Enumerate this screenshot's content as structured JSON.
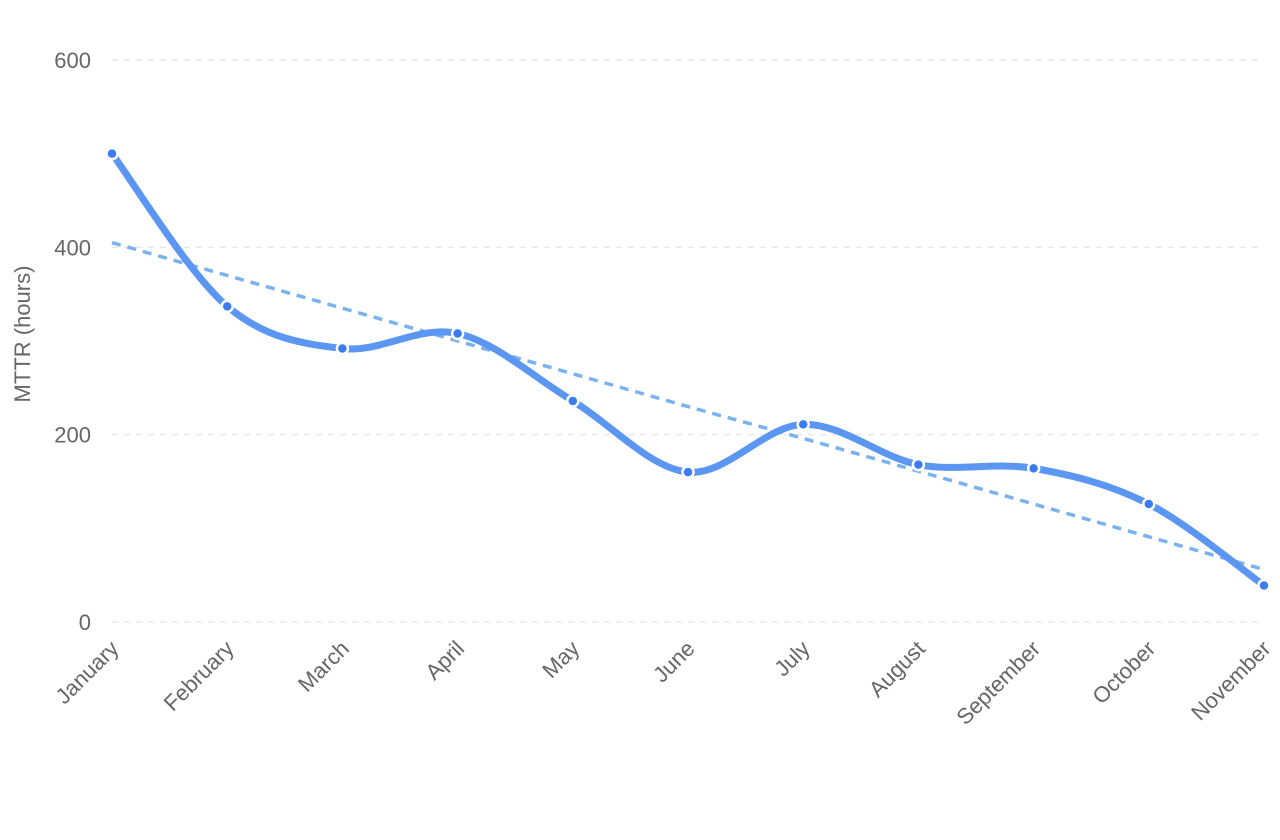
{
  "chart_data": {
    "type": "line",
    "title": "",
    "xlabel": "",
    "ylabel": "MTTR (hours)",
    "categories": [
      "January",
      "February",
      "March",
      "April",
      "May",
      "June",
      "July",
      "August",
      "September",
      "October",
      "November"
    ],
    "series": [
      {
        "values": [
          500,
          337,
          292,
          308,
          236,
          160,
          211,
          168,
          164,
          126,
          39
        ],
        "color": "#5b96f2",
        "smooth": true,
        "markers": true
      },
      {
        "values": [
          405,
          370,
          335,
          300,
          265,
          230,
          196,
          161,
          126,
          91,
          56
        ],
        "color": "#7ab2f0",
        "dashed": true,
        "trend": true
      }
    ],
    "ylim": [
      0,
      600
    ],
    "yticks": [
      0,
      200,
      400,
      600
    ],
    "grid": true,
    "legend": "none"
  }
}
